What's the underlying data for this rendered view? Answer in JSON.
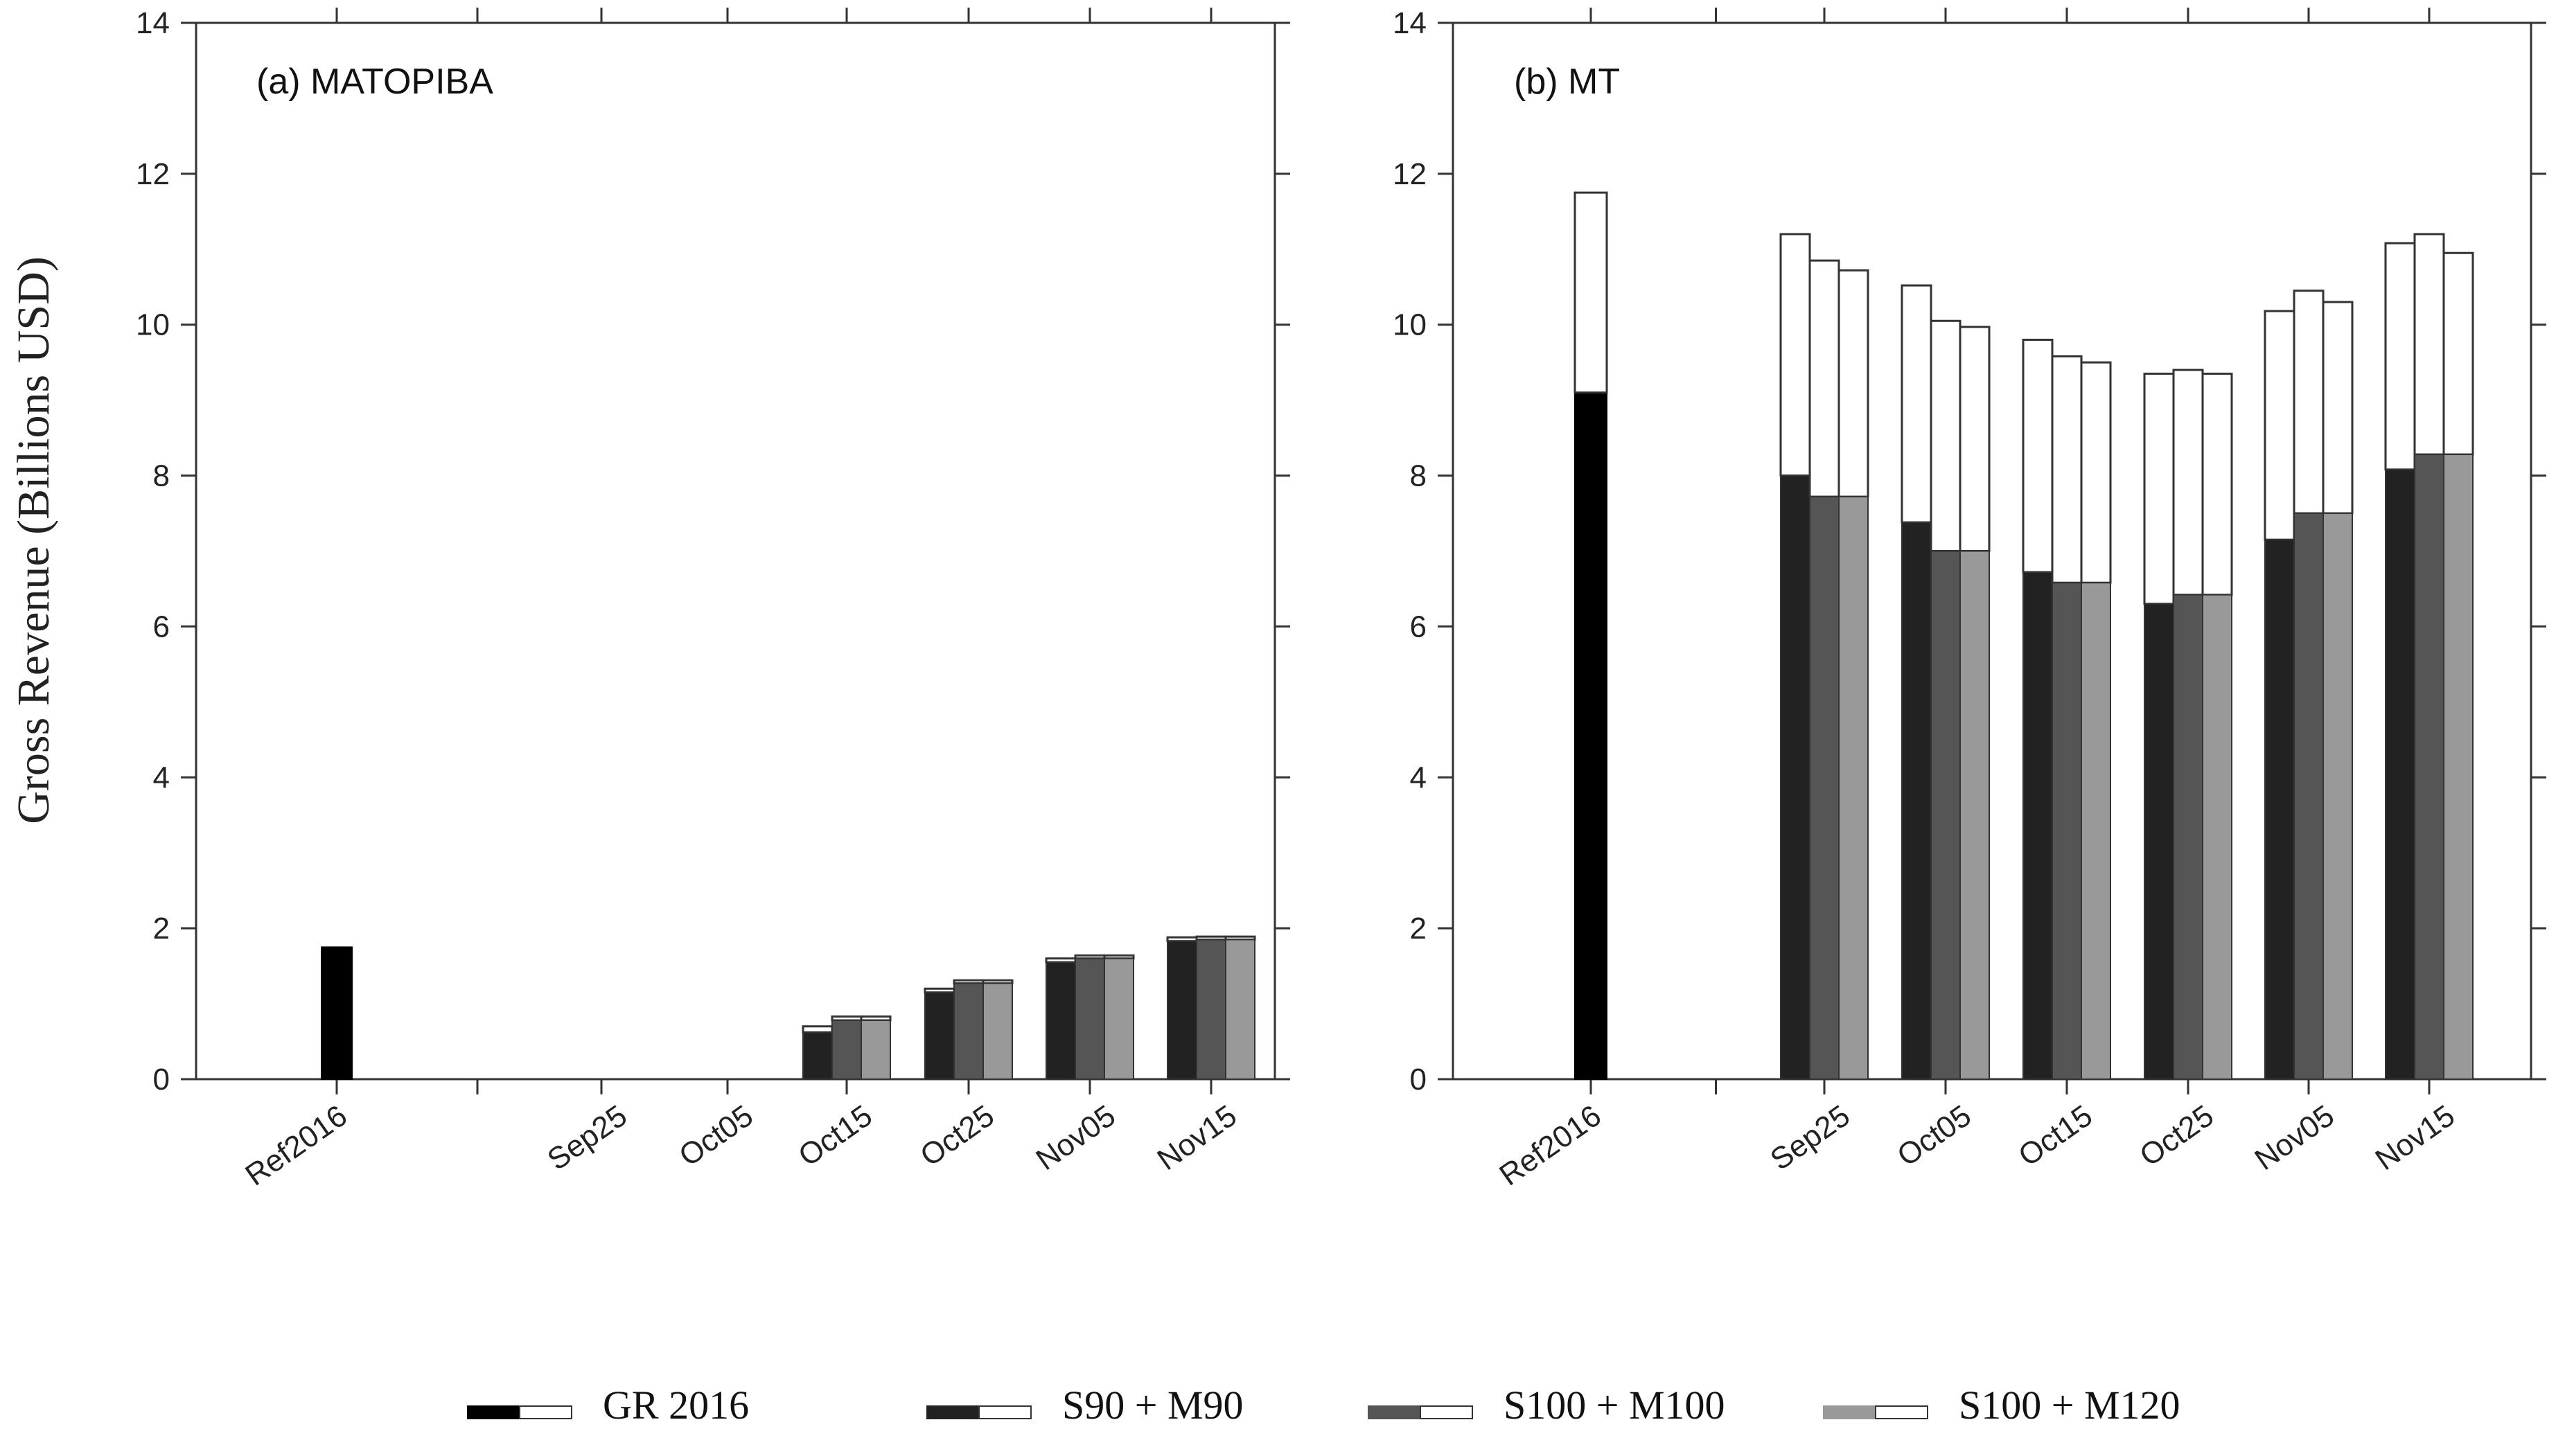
{
  "chart_data": {
    "type": "bar",
    "ylabel": "Gross  Revenue (Billions USD)",
    "ylim": [
      0,
      14
    ],
    "yticks": [
      "0",
      "2",
      "4",
      "6",
      "8",
      "10",
      "12",
      "14"
    ],
    "categories": [
      "Ref2016",
      "Sep25",
      "Oct05",
      "Oct15",
      "Oct25",
      "Nov05",
      "Nov15"
    ],
    "legend": [
      {
        "name": "GR 2016",
        "color": "#000000"
      },
      {
        "name": "S90 + M90",
        "color": "#222222"
      },
      {
        "name": "S100 + M100",
        "color": "#555555"
      },
      {
        "name": "S100 + M120",
        "color": "#999999"
      }
    ],
    "panels": [
      {
        "title": "(a) MATOPIBA",
        "ref": {
          "label": "Ref2016",
          "value": 1.75
        },
        "series": [
          {
            "name": "S90 + M90",
            "color": "#222222",
            "base": [
              0,
              0,
              0.62,
              1.15,
              1.55,
              1.83
            ],
            "top": [
              0,
              0,
              0.7,
              1.2,
              1.6,
              1.88
            ]
          },
          {
            "name": "S100 + M100",
            "color": "#555555",
            "base": [
              0,
              0,
              0.78,
              1.27,
              1.6,
              1.85
            ],
            "top": [
              0,
              0,
              0.83,
              1.31,
              1.64,
              1.89
            ]
          },
          {
            "name": "S100 + M120",
            "color": "#999999",
            "base": [
              0,
              0,
              0.78,
              1.27,
              1.6,
              1.85
            ],
            "top": [
              0,
              0,
              0.83,
              1.31,
              1.64,
              1.89
            ]
          }
        ]
      },
      {
        "title": "(b) MT",
        "ref": {
          "label": "Ref2016",
          "value": 9.1,
          "top": 11.75
        },
        "series": [
          {
            "name": "S90 + M90",
            "color": "#222222",
            "base": [
              8.0,
              7.38,
              6.72,
              6.3,
              7.15,
              8.08
            ],
            "top": [
              11.2,
              10.52,
              9.8,
              9.35,
              10.18,
              11.08
            ]
          },
          {
            "name": "S100 + M100",
            "color": "#555555",
            "base": [
              7.72,
              7.0,
              6.58,
              6.42,
              7.5,
              8.28
            ],
            "top": [
              10.85,
              10.05,
              9.58,
              9.4,
              10.45,
              11.2
            ]
          },
          {
            "name": "S100 + M120",
            "color": "#999999",
            "base": [
              7.72,
              7.0,
              6.58,
              6.42,
              7.5,
              8.28
            ],
            "top": [
              10.72,
              9.97,
              9.5,
              9.35,
              10.3,
              10.95
            ]
          }
        ]
      }
    ]
  }
}
